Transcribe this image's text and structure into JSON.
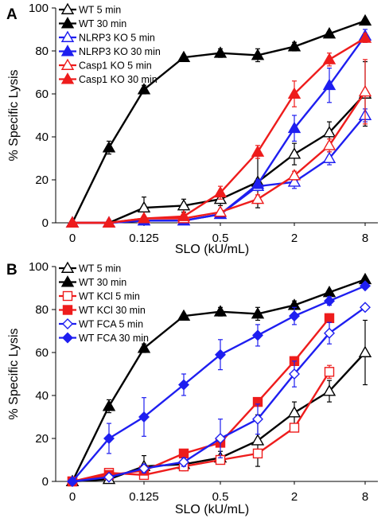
{
  "chart_data": [
    {
      "type": "line",
      "panel": "A",
      "xlabel": "SLO (kU/mL)",
      "ylabel": "% Specific Lysis",
      "ylim": [
        0,
        100
      ],
      "yticks": [
        "0",
        "20",
        "40",
        "60",
        "80",
        "100"
      ],
      "xtick_labels": [
        "0",
        "0.125",
        "0.5",
        "2",
        "8"
      ],
      "x_scale": "log2 (0 at origin)",
      "legend_position": "top-left",
      "series": [
        {
          "name": "WT 5 min",
          "color": "#000000",
          "marker": "open-triangle",
          "x": [
            0,
            0.0625,
            0.125,
            0.25,
            0.5,
            1,
            2,
            4,
            8
          ],
          "y": [
            0,
            0,
            7,
            8,
            11,
            19,
            32,
            42,
            60
          ],
          "err": [
            0,
            0,
            5,
            3,
            3,
            12,
            5,
            5,
            15
          ]
        },
        {
          "name": "WT 30 min",
          "color": "#000000",
          "marker": "filled-triangle",
          "x": [
            0,
            0.0625,
            0.125,
            0.25,
            0.5,
            1,
            2,
            4,
            8
          ],
          "y": [
            0,
            35,
            62,
            77,
            79,
            78,
            82,
            88,
            94
          ],
          "err": [
            0,
            3,
            2,
            1,
            2,
            3,
            2,
            1,
            1
          ]
        },
        {
          "name": "NLRP3 KO 5 min",
          "color": "#1e1ef0",
          "marker": "open-triangle",
          "x": [
            0,
            0.0625,
            0.125,
            0.25,
            0.5,
            1,
            2,
            4,
            8
          ],
          "y": [
            0,
            0,
            1,
            1,
            4,
            17,
            19,
            30,
            50
          ],
          "err": [
            0,
            0,
            0,
            0,
            1,
            2,
            3,
            3,
            3
          ]
        },
        {
          "name": "NLRP3 KO 30 min",
          "color": "#1e1ef0",
          "marker": "filled-triangle",
          "x": [
            0,
            0.0625,
            0.125,
            0.25,
            0.5,
            1,
            2,
            4,
            8
          ],
          "y": [
            0,
            0,
            1,
            1,
            4,
            18,
            44,
            64,
            87
          ],
          "err": [
            0,
            0,
            0,
            0,
            1,
            2,
            6,
            8,
            3
          ]
        },
        {
          "name": "Casp1 KO 5 min",
          "color": "#ee1c1c",
          "marker": "open-triangle",
          "x": [
            0,
            0.0625,
            0.125,
            0.25,
            0.5,
            1,
            2,
            4,
            8
          ],
          "y": [
            0,
            0,
            2,
            2,
            5,
            11,
            22,
            36,
            61
          ],
          "err": [
            0,
            0,
            0,
            0,
            1,
            2,
            2,
            3,
            15
          ]
        },
        {
          "name": "Casp1 KO 30 min",
          "color": "#ee1c1c",
          "marker": "filled-triangle",
          "x": [
            0,
            0.0625,
            0.125,
            0.25,
            0.5,
            1,
            2,
            4,
            8
          ],
          "y": [
            0,
            0,
            2,
            3,
            14,
            33,
            60,
            76,
            86
          ],
          "err": [
            0,
            0,
            0,
            0,
            3,
            3,
            6,
            3,
            2
          ]
        }
      ]
    },
    {
      "type": "line",
      "panel": "B",
      "xlabel": "SLO (kU/mL)",
      "ylabel": "% Specific Lysis",
      "ylim": [
        0,
        100
      ],
      "yticks": [
        "0",
        "20",
        "40",
        "60",
        "80",
        "100"
      ],
      "xtick_labels": [
        "0",
        "0.125",
        "0.5",
        "2",
        "8"
      ],
      "x_scale": "log2 (0 at origin)",
      "legend_position": "top-left",
      "series": [
        {
          "name": "WT 5 min",
          "color": "#000000",
          "marker": "open-triangle",
          "x": [
            0,
            0.0625,
            0.125,
            0.25,
            0.5,
            1,
            2,
            4,
            8
          ],
          "y": [
            0,
            1,
            7,
            8,
            11,
            19,
            32,
            42,
            60
          ],
          "err": [
            0,
            1,
            5,
            3,
            3,
            12,
            5,
            5,
            15
          ]
        },
        {
          "name": "WT 30 min",
          "color": "#000000",
          "marker": "filled-triangle",
          "x": [
            0,
            0.0625,
            0.125,
            0.25,
            0.5,
            1,
            2,
            4,
            8
          ],
          "y": [
            0,
            35,
            62,
            77,
            79,
            78,
            82,
            88,
            94
          ],
          "err": [
            0,
            3,
            2,
            1,
            2,
            3,
            2,
            1,
            1
          ]
        },
        {
          "name": "WT KCl 5 min",
          "color": "#ee1c1c",
          "marker": "open-square",
          "x": [
            0,
            0.0625,
            0.125,
            0.25,
            0.5,
            1,
            2,
            4
          ],
          "y": [
            0,
            4,
            3,
            7,
            10,
            13,
            25,
            51
          ],
          "err": [
            0,
            1,
            1,
            2,
            2,
            2,
            2,
            3
          ]
        },
        {
          "name": "WT KCl 30 min",
          "color": "#ee1c1c",
          "marker": "filled-square",
          "x": [
            0,
            0.0625,
            0.125,
            0.25,
            0.5,
            1,
            2,
            4
          ],
          "y": [
            0,
            3,
            5,
            13,
            18,
            37,
            56,
            76
          ],
          "err": [
            0,
            1,
            1,
            1,
            2,
            2,
            2,
            2
          ]
        },
        {
          "name": "WT FCA 5 min",
          "color": "#1e1ef0",
          "marker": "open-diamond",
          "x": [
            0,
            0.0625,
            0.125,
            0.25,
            0.5,
            1,
            2,
            4,
            8
          ],
          "y": [
            0,
            2,
            6,
            9,
            20,
            29,
            50,
            69,
            81
          ],
          "err": [
            0,
            1,
            2,
            2,
            9,
            7,
            6,
            5,
            1
          ]
        },
        {
          "name": "WT FCA 30 min",
          "color": "#1e1ef0",
          "marker": "filled-diamond",
          "x": [
            0,
            0.0625,
            0.125,
            0.25,
            0.5,
            1,
            2,
            4,
            8
          ],
          "y": [
            0,
            20,
            30,
            45,
            59,
            68,
            77,
            84,
            91
          ],
          "err": [
            0,
            7,
            9,
            5,
            7,
            5,
            4,
            2,
            1
          ]
        }
      ]
    }
  ]
}
